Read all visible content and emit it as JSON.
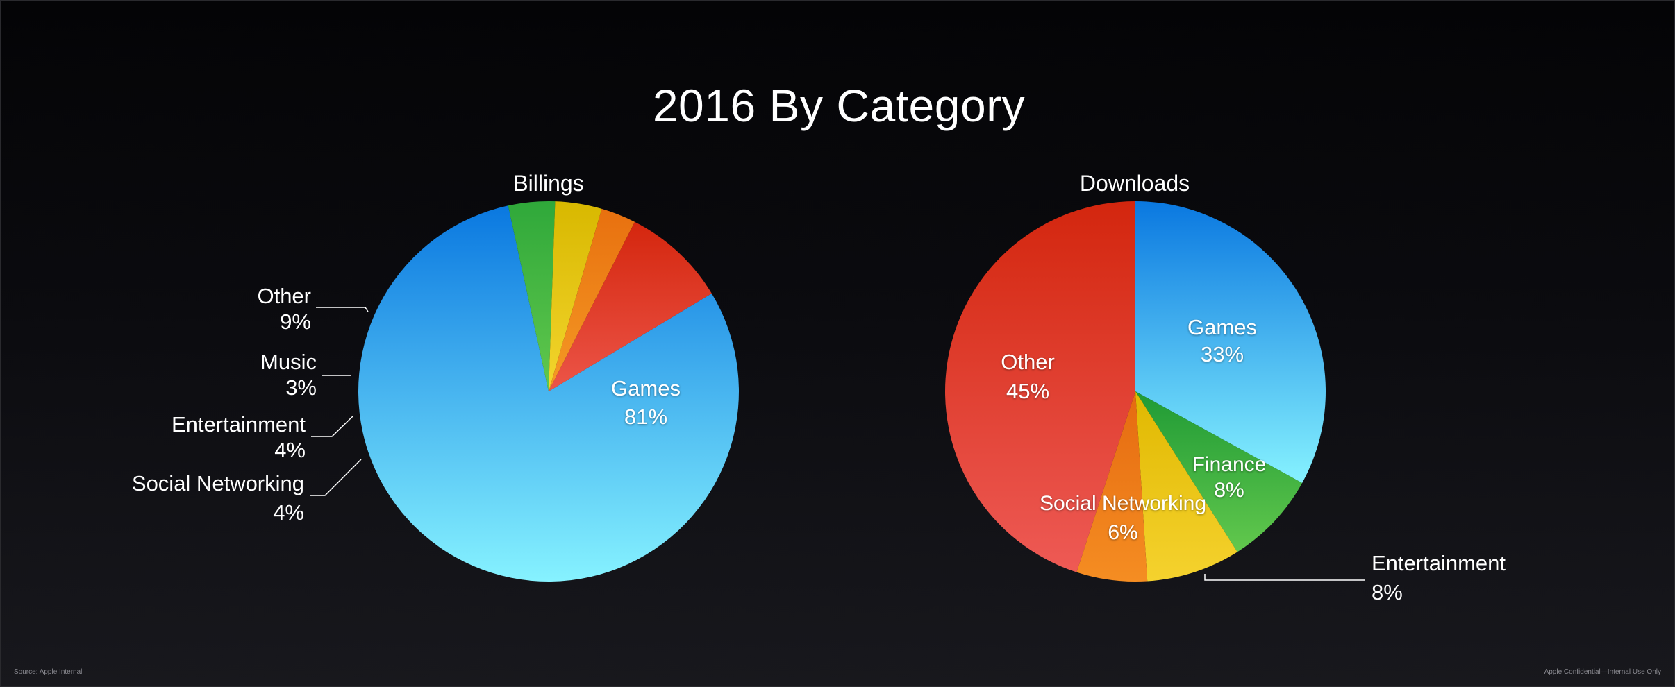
{
  "slide": {
    "title": "2016 By Category",
    "footer_left": "Source: Apple Internal",
    "footer_right": "Apple Confidential—Internal Use Only"
  },
  "chart_data": [
    {
      "type": "pie",
      "title": "Billings",
      "slices": [
        {
          "label": "Games",
          "value": 81,
          "display": "81%",
          "color_top": "#0a78e0",
          "color_bottom": "#86f2ff"
        },
        {
          "label": "Social Networking",
          "value": 4,
          "display": "4%",
          "color_top": "#2fa83a",
          "color_bottom": "#62c84d"
        },
        {
          "label": "Entertainment",
          "value": 4,
          "display": "4%",
          "color_top": "#d8b800",
          "color_bottom": "#f3d52e"
        },
        {
          "label": "Music",
          "value": 3,
          "display": "3%",
          "color_top": "#e8700f",
          "color_bottom": "#f59a25"
        },
        {
          "label": "Other",
          "value": 9,
          "display": "9%",
          "color_top": "#d4260e",
          "color_bottom": "#ec5548"
        }
      ]
    },
    {
      "type": "pie",
      "title": "Downloads",
      "slices": [
        {
          "label": "Games",
          "value": 33,
          "display": "33%",
          "color_top": "#0a78e0",
          "color_bottom": "#86f2ff"
        },
        {
          "label": "Finance",
          "value": 8,
          "display": "8%",
          "color_top": "#1f9a35",
          "color_bottom": "#62c84d"
        },
        {
          "label": "Entertainment",
          "value": 8,
          "display": "8%",
          "color_top": "#e0b800",
          "color_bottom": "#f5d22e"
        },
        {
          "label": "Social Networking",
          "value": 6,
          "display": "6%",
          "color_top": "#e56a10",
          "color_bottom": "#f58d22"
        },
        {
          "label": "Other",
          "value": 45,
          "display": "45%",
          "color_top": "#d3260e",
          "color_bottom": "#ee5a55"
        }
      ]
    }
  ]
}
